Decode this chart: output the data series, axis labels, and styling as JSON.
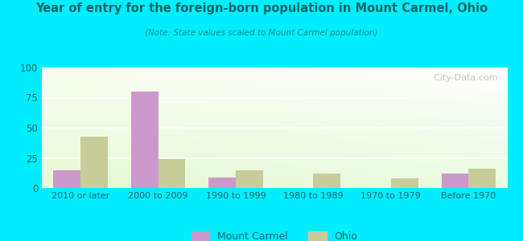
{
  "title": "Year of entry for the foreign-born population in Mount Carmel, Ohio",
  "subtitle": "(Note: State values scaled to Mount Carmel population)",
  "categories": [
    "2010 or later",
    "2000 to 2009",
    "1990 to 1999",
    "1980 to 1989",
    "1970 to 1979",
    "Before 1970"
  ],
  "mount_carmel": [
    15,
    80,
    9,
    0,
    0,
    12
  ],
  "ohio": [
    43,
    24,
    15,
    12,
    8,
    16
  ],
  "mount_carmel_color": "#cc99cc",
  "ohio_color": "#c8cc99",
  "background_outer": "#00eeff",
  "ylim": [
    0,
    100
  ],
  "yticks": [
    0,
    25,
    50,
    75,
    100
  ],
  "bar_width": 0.35,
  "legend_labels": [
    "Mount Carmel",
    "Ohio"
  ],
  "watermark": "  City-Data.com",
  "title_color": "#006666",
  "subtitle_color": "#008888",
  "tick_color": "#006666",
  "legend_text_color": "#006666"
}
